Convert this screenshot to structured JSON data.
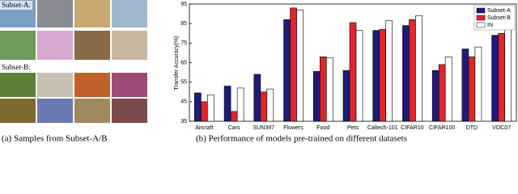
{
  "figure": {
    "subset_a_label": "Subset-A:",
    "subset_b_label": "Subset-B:",
    "caption_a": "(a)  Samples from Subset-A/B",
    "caption_b": "(b)  Performance of models pre-trained on different datasets"
  },
  "chart_data": {
    "type": "bar",
    "y_label": "Transfer Accuracy(%)",
    "categories": [
      "Aircraft",
      "Cars",
      "SUN397",
      "Flowers",
      "Food",
      "Pets",
      "Caltech-101",
      "CIFAR10",
      "CIFAR100",
      "DTD",
      "VOC07"
    ],
    "series": [
      {
        "name": "Subset-A",
        "color": "#1c1c7a",
        "values": [
          49.5,
          53,
          59,
          87,
          60.5,
          61,
          81.5,
          84,
          61,
          72,
          79
        ]
      },
      {
        "name": "Subset-B",
        "color": "#e0262c",
        "values": [
          45,
          40,
          50,
          93,
          68,
          85.5,
          82,
          87,
          64,
          68,
          80
        ]
      },
      {
        "name": "IN",
        "color": "#ffffff",
        "values": [
          48.5,
          52,
          51.5,
          92,
          67.5,
          81.5,
          86.5,
          89,
          68,
          73,
          82.5
        ]
      }
    ],
    "ylim": [
      35,
      95
    ],
    "yticks": [
      35,
      45,
      55,
      65,
      75,
      85,
      95
    ],
    "legend": "upper right"
  }
}
